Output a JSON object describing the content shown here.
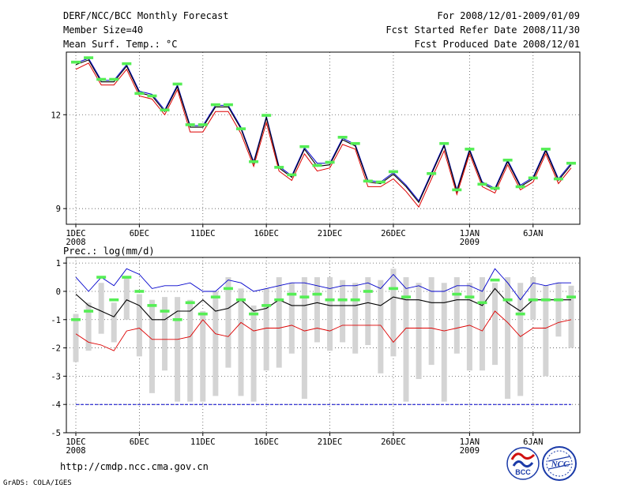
{
  "header": {
    "title": "DERF/NCC/BCC Monthly Forecast",
    "member_size": "Member Size=40",
    "variable": "Mean Surf. Temp.: °C",
    "period": "For 2008/12/01-2009/01/09",
    "started": "Fcst Started Refer Date 2008/11/30",
    "produced": "Fcst Produced Date 2008/12/01"
  },
  "footer": {
    "url": "http://cmdp.ncc.cma.gov.cn",
    "credit": "GrADS: COLA/IGES",
    "logo_bcc": "BCC",
    "logo_ncc": "NCC"
  },
  "colors": {
    "observed": "#55ee55",
    "upper": "#0000cc",
    "lower": "#dd0000",
    "mean": "#000000",
    "box": "#d4d4d4",
    "grid": "#555555"
  },
  "chart_data": [
    {
      "type": "line",
      "title": "Mean Surf. Temp.: °C",
      "x_days": [
        1,
        2,
        3,
        4,
        5,
        6,
        7,
        8,
        9,
        10,
        11,
        12,
        13,
        14,
        15,
        16,
        17,
        18,
        19,
        20,
        21,
        22,
        23,
        24,
        25,
        26,
        27,
        28,
        29,
        30,
        31,
        32,
        33,
        34,
        35,
        36,
        37,
        38,
        39,
        40
      ],
      "xticks": [
        "1DEC",
        "6DEC",
        "11DEC",
        "16DEC",
        "21DEC",
        "26DEC",
        "1JAN",
        "6JAN"
      ],
      "xtick_days": [
        1,
        6,
        11,
        16,
        21,
        26,
        32,
        37
      ],
      "year_labels": [
        {
          "day": 1,
          "label": "2008"
        },
        {
          "day": 32,
          "label": "2009"
        }
      ],
      "yticks": [
        9,
        12
      ],
      "ylim": [
        8.5,
        14.0
      ],
      "series": [
        {
          "name": "upper",
          "values": [
            13.65,
            13.8,
            13.1,
            13.1,
            13.6,
            12.75,
            12.65,
            12.15,
            12.95,
            11.65,
            11.65,
            12.3,
            12.3,
            11.6,
            10.5,
            11.95,
            10.35,
            10.05,
            10.95,
            10.45,
            10.45,
            11.25,
            11.05,
            9.9,
            9.85,
            10.15,
            9.75,
            9.25,
            10.15,
            11.05,
            9.6,
            10.9,
            9.85,
            9.65,
            10.55,
            9.75,
            10.0,
            10.9,
            9.95,
            10.45
          ]
        },
        {
          "name": "mean",
          "values": [
            13.6,
            13.75,
            13.05,
            13.05,
            13.55,
            12.7,
            12.6,
            12.1,
            12.9,
            11.6,
            11.6,
            12.25,
            12.25,
            11.55,
            10.45,
            11.9,
            10.3,
            10.0,
            10.9,
            10.35,
            10.4,
            11.2,
            11.0,
            9.85,
            9.8,
            10.1,
            9.7,
            9.2,
            10.1,
            11.0,
            9.55,
            10.85,
            9.8,
            9.6,
            10.5,
            9.7,
            9.95,
            10.85,
            9.9,
            10.4
          ]
        },
        {
          "name": "lower",
          "values": [
            13.45,
            13.65,
            12.95,
            12.95,
            13.45,
            12.6,
            12.5,
            12.0,
            12.8,
            11.45,
            11.45,
            12.1,
            12.1,
            11.4,
            10.35,
            11.75,
            10.2,
            9.9,
            10.75,
            10.2,
            10.3,
            11.05,
            10.9,
            9.7,
            9.7,
            9.95,
            9.55,
            9.05,
            9.95,
            10.85,
            9.45,
            10.75,
            9.7,
            9.5,
            10.4,
            9.6,
            9.85,
            10.75,
            9.8,
            10.3
          ]
        },
        {
          "name": "observed",
          "values": [
            13.68,
            13.82,
            13.13,
            13.13,
            13.63,
            12.68,
            12.6,
            12.15,
            12.98,
            11.68,
            11.68,
            12.32,
            12.32,
            11.55,
            10.5,
            11.98,
            10.32,
            10.08,
            10.98,
            10.38,
            10.48,
            11.28,
            11.08,
            9.88,
            9.85,
            10.18,
            null,
            null,
            10.12,
            11.08,
            9.6,
            10.9,
            9.78,
            9.65,
            10.55,
            9.7,
            9.98,
            10.9,
            9.95,
            10.45
          ]
        }
      ]
    },
    {
      "type": "box",
      "title": "Prec.: log(mm/d)",
      "x_days": [
        1,
        2,
        3,
        4,
        5,
        6,
        7,
        8,
        9,
        10,
        11,
        12,
        13,
        14,
        15,
        16,
        17,
        18,
        19,
        20,
        21,
        22,
        23,
        24,
        25,
        26,
        27,
        28,
        29,
        30,
        31,
        32,
        33,
        34,
        35,
        36,
        37,
        38,
        39,
        40
      ],
      "xticks": [
        "1DEC",
        "6DEC",
        "11DEC",
        "16DEC",
        "21DEC",
        "26DEC",
        "1JAN",
        "6JAN"
      ],
      "xtick_days": [
        1,
        6,
        11,
        16,
        21,
        26,
        32,
        37
      ],
      "year_labels": [
        {
          "day": 1,
          "label": "2008"
        },
        {
          "day": 32,
          "label": "2009"
        }
      ],
      "yticks": [
        1,
        0,
        -1,
        -2,
        -3,
        -4,
        -5
      ],
      "ylim": [
        -5,
        1.2
      ],
      "box_range": {
        "top": [
          -0.8,
          -0.4,
          0.3,
          -0.4,
          0.5,
          -0.1,
          -0.3,
          -0.2,
          -0.2,
          -0.3,
          -0.7,
          0.0,
          0.5,
          0.1,
          -0.5,
          0.1,
          0.5,
          0.3,
          0.5,
          0.5,
          0.5,
          0.4,
          0.3,
          0.5,
          0.4,
          0.8,
          0.5,
          0.3,
          0.5,
          0.3,
          0.5,
          0.3,
          0.5,
          0.3,
          0.5,
          0.3,
          0.5,
          0.2,
          0.3,
          0.2
        ],
        "bottom": [
          -2.5,
          -2.1,
          -1.5,
          -1.8,
          -1.0,
          -2.3,
          -3.6,
          -2.8,
          -3.9,
          -3.9,
          -3.9,
          -3.7,
          -2.7,
          -3.7,
          -3.9,
          -2.8,
          -2.7,
          -2.2,
          -3.8,
          -1.8,
          -2.1,
          -1.8,
          -2.2,
          -1.9,
          -2.9,
          -2.3,
          -3.9,
          -3.1,
          -2.6,
          -3.9,
          -2.2,
          -2.8,
          -2.8,
          -2.6,
          -3.8,
          -3.7,
          -1.0,
          -3.0,
          -1.6,
          -2.0
        ]
      },
      "series": [
        {
          "name": "upper",
          "values": [
            0.5,
            0.0,
            0.5,
            0.2,
            0.8,
            0.6,
            0.1,
            0.2,
            0.2,
            0.3,
            0.0,
            0.0,
            0.4,
            0.3,
            0.0,
            0.1,
            0.2,
            0.3,
            0.3,
            0.2,
            0.1,
            0.2,
            0.2,
            0.3,
            0.1,
            0.6,
            0.1,
            0.2,
            0.0,
            0.0,
            0.2,
            0.2,
            0.0,
            0.8,
            0.3,
            -0.3,
            0.3,
            0.2,
            0.3,
            0.3
          ]
        },
        {
          "name": "mean",
          "values": [
            -0.1,
            -0.5,
            -0.7,
            -0.9,
            -0.3,
            -0.5,
            -1.0,
            -1.0,
            -0.7,
            -0.7,
            -0.3,
            -0.7,
            -0.6,
            -0.3,
            -0.7,
            -0.6,
            -0.3,
            -0.5,
            -0.5,
            -0.4,
            -0.5,
            -0.5,
            -0.5,
            -0.4,
            -0.5,
            -0.2,
            -0.3,
            -0.3,
            -0.4,
            -0.4,
            -0.3,
            -0.3,
            -0.5,
            0.1,
            -0.4,
            -0.7,
            -0.3,
            -0.3,
            -0.3,
            -0.3
          ]
        },
        {
          "name": "lower",
          "values": [
            -1.5,
            -1.8,
            -1.9,
            -2.1,
            -1.4,
            -1.3,
            -1.7,
            -1.7,
            -1.7,
            -1.6,
            -1.0,
            -1.5,
            -1.6,
            -1.1,
            -1.4,
            -1.3,
            -1.3,
            -1.2,
            -1.4,
            -1.3,
            -1.4,
            -1.2,
            -1.2,
            -1.2,
            -1.2,
            -1.8,
            -1.3,
            -1.3,
            -1.3,
            -1.4,
            -1.3,
            -1.2,
            -1.4,
            -0.7,
            -1.1,
            -1.6,
            -1.3,
            -1.3,
            -1.1,
            -1.0
          ]
        },
        {
          "name": "observed",
          "values": [
            -1.0,
            -0.7,
            0.5,
            -0.3,
            0.5,
            0.0,
            -0.5,
            -0.7,
            -1.0,
            -0.4,
            -0.8,
            -0.2,
            0.1,
            -0.3,
            -0.8,
            -0.5,
            -0.3,
            -0.1,
            -0.2,
            -0.1,
            -0.3,
            -0.3,
            -0.3,
            0.0,
            null,
            0.1,
            -0.2,
            null,
            null,
            null,
            -0.1,
            -0.2,
            -0.4,
            0.4,
            -0.3,
            -0.8,
            -0.3,
            -0.3,
            -0.3,
            -0.2
          ]
        },
        {
          "name": "climatology",
          "values": [
            -4,
            -4,
            -4,
            -4,
            -4,
            -4,
            -4,
            -4,
            -4,
            -4,
            -4,
            -4,
            -4,
            -4,
            -4,
            -4,
            -4,
            -4,
            -4,
            -4,
            -4,
            -4,
            -4,
            -4,
            -4,
            -4,
            -4,
            -4,
            -4,
            -4,
            -4,
            -4,
            -4,
            -4,
            -4,
            -4,
            -4,
            -4,
            -4,
            -4
          ]
        }
      ]
    }
  ]
}
